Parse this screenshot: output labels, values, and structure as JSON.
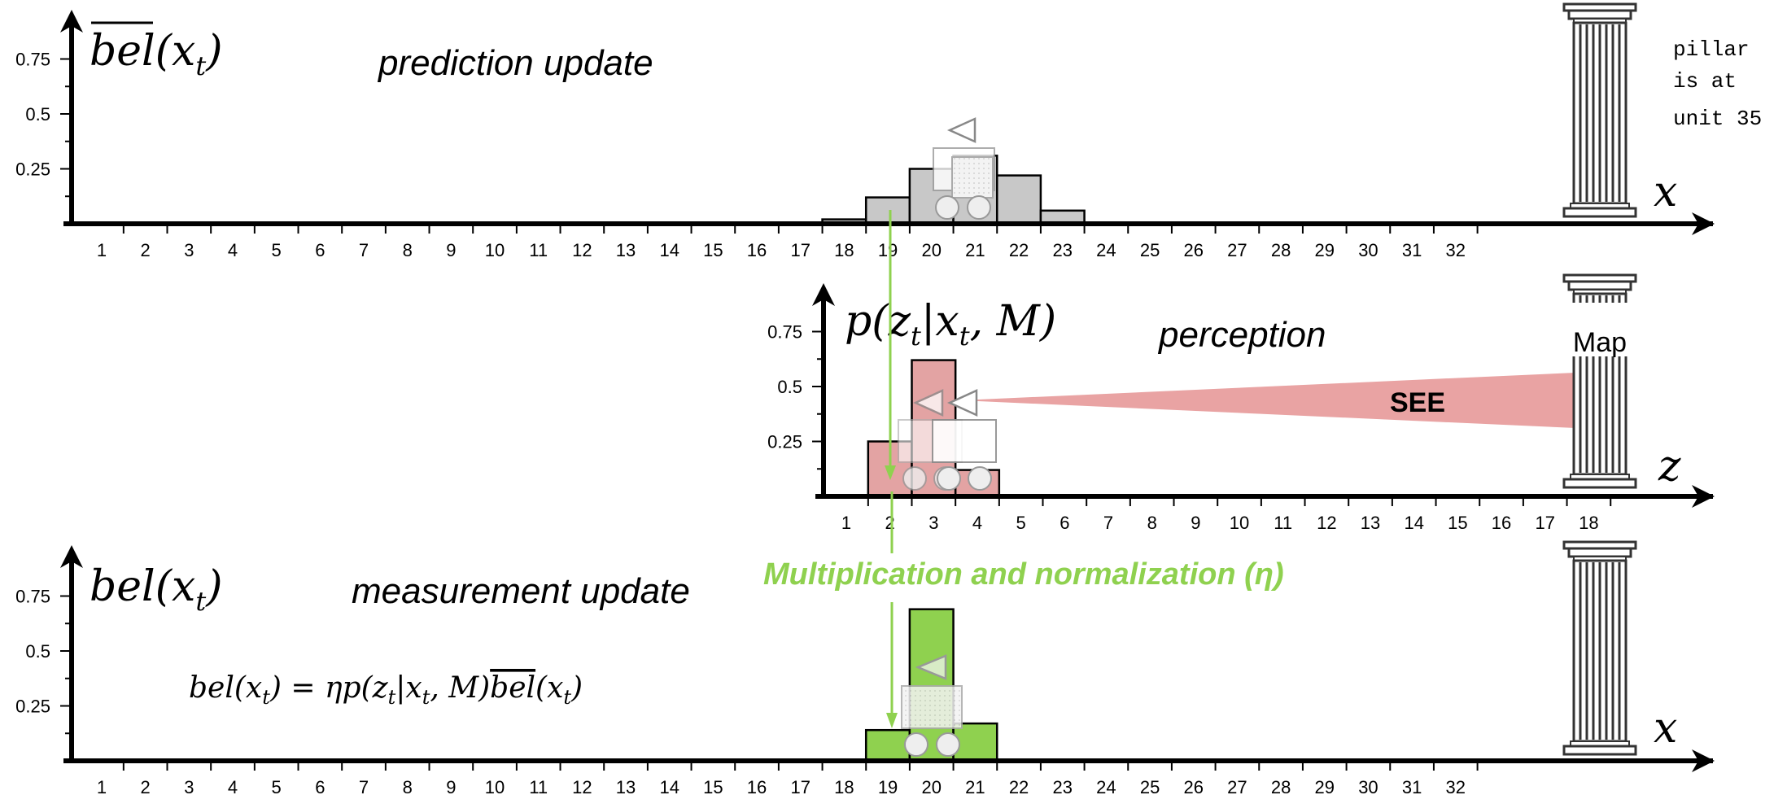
{
  "colors": {
    "prior_bar": "#c8c8c8",
    "perception_bar": "#e3a3a3",
    "posterior_bar": "#8fd14f",
    "green_text": "#8fd14f",
    "see_beam": "#e9a3a3"
  },
  "panels": {
    "prediction": {
      "title": "prediction update",
      "ylabel_base": "bel",
      "ylabel_arg": "(x",
      "ylabel_sub": "t",
      "ylabel_close": ")",
      "axis_label": "x",
      "yticks": [
        "0.25",
        "0.5",
        "0.75"
      ]
    },
    "perception": {
      "title": "perception",
      "ylabel": "p(z",
      "ylabel_sub": "t",
      "ylabel_mid": "|x",
      "ylabel_sub2": "t",
      "ylabel_end": ", M)",
      "axis_label": "z",
      "yticks": [
        "0.25",
        "0.5",
        "0.75"
      ],
      "map_label": "Map",
      "see_label": "SEE"
    },
    "measurement": {
      "title": "measurement update",
      "ylabel_base": "bel",
      "ylabel_arg": "(x",
      "ylabel_sub": "t",
      "ylabel_close": ")",
      "axis_label": "x",
      "yticks": [
        "0.25",
        "0.5",
        "0.75"
      ],
      "formula": "bel(x",
      "formula_sub": "t",
      "formula_mid": ") = ηp(z",
      "formula_sub2": "t",
      "formula_mid2": "|x",
      "formula_sub3": "t",
      "formula_mid3": ", M)",
      "formula_bel": "bel",
      "formula_end": "(x",
      "formula_sub4": "t",
      "formula_close": ")"
    }
  },
  "note_pillar": [
    "pillar",
    "is at",
    "unit 35"
  ],
  "multiply_note": "Multiplication and normalization (η)",
  "chart_data": [
    {
      "type": "bar",
      "name": "prediction",
      "categories": [
        "1",
        "2",
        "3",
        "4",
        "5",
        "6",
        "7",
        "8",
        "9",
        "10",
        "11",
        "12",
        "13",
        "14",
        "15",
        "16",
        "17",
        "18",
        "19",
        "20",
        "21",
        "22",
        "23",
        "24",
        "25",
        "26",
        "27",
        "28",
        "29",
        "30",
        "31",
        "32"
      ],
      "values": [
        0,
        0,
        0,
        0,
        0,
        0,
        0,
        0,
        0,
        0,
        0,
        0,
        0,
        0,
        0,
        0,
        0,
        0.02,
        0.12,
        0.25,
        0.31,
        0.22,
        0.06,
        0,
        0,
        0,
        0,
        0,
        0,
        0,
        0,
        0
      ],
      "ylim": [
        0,
        0.85
      ],
      "xlabel": "x",
      "ylabel": "bel(x_t)"
    },
    {
      "type": "bar",
      "name": "perception",
      "categories": [
        "1",
        "2",
        "3",
        "4",
        "5",
        "6",
        "7",
        "8",
        "9",
        "10",
        "11",
        "12",
        "13",
        "14",
        "15",
        "16",
        "17",
        "18"
      ],
      "values": [
        0,
        0.25,
        0.62,
        0.12,
        0,
        0,
        0,
        0,
        0,
        0,
        0,
        0,
        0,
        0,
        0,
        0,
        0,
        0
      ],
      "ylim": [
        0,
        0.85
      ],
      "xlabel": "z",
      "ylabel": "p(z_t|x_t, M)"
    },
    {
      "type": "bar",
      "name": "measurement",
      "categories": [
        "1",
        "2",
        "3",
        "4",
        "5",
        "6",
        "7",
        "8",
        "9",
        "10",
        "11",
        "12",
        "13",
        "14",
        "15",
        "16",
        "17",
        "18",
        "19",
        "20",
        "21",
        "22",
        "23",
        "24",
        "25",
        "26",
        "27",
        "28",
        "29",
        "30",
        "31",
        "32"
      ],
      "values": [
        0,
        0,
        0,
        0,
        0,
        0,
        0,
        0,
        0,
        0,
        0,
        0,
        0,
        0,
        0,
        0,
        0,
        0,
        0.14,
        0.69,
        0.17,
        0,
        0,
        0,
        0,
        0,
        0,
        0,
        0,
        0,
        0,
        0
      ],
      "ylim": [
        0,
        0.85
      ],
      "xlabel": "x",
      "ylabel": "bel(x_t)"
    }
  ]
}
